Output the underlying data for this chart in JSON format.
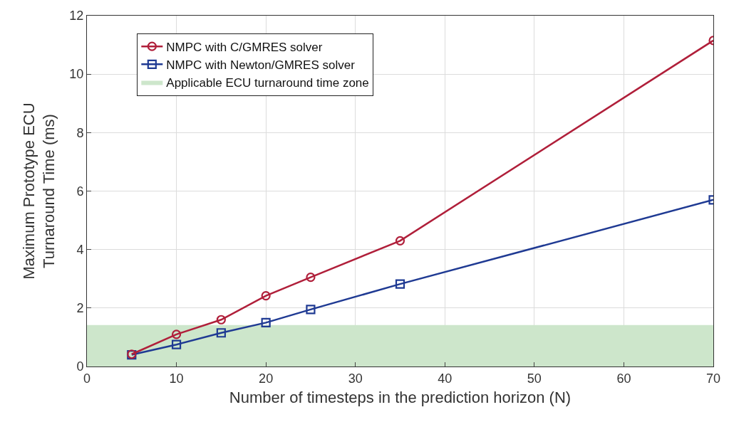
{
  "chart_data": {
    "type": "line",
    "xlabel": "Number of timesteps in the prediction horizon (N)",
    "ylabel": "Maximum Prototype ECU\nTurnaround Time (ms)",
    "x": [
      5,
      10,
      15,
      20,
      25,
      35,
      70
    ],
    "series": [
      {
        "name": "NMPC with Newton/GMRES solver",
        "color": "#1f3a93",
        "marker": "square",
        "values": [
          0.4,
          0.75,
          1.15,
          1.5,
          1.95,
          2.82,
          5.7
        ]
      },
      {
        "name": "NMPC with C/GMRES solver",
        "color": "#b01f3a",
        "marker": "circle",
        "values": [
          0.42,
          1.1,
          1.6,
          2.42,
          3.05,
          4.3,
          11.15
        ]
      }
    ],
    "bands": [
      {
        "axis": "y",
        "from": 0,
        "to": 1.42,
        "label": "Applicable ECU turnaround time zone",
        "color": "#cde6cb"
      }
    ],
    "xlim": [
      0,
      70
    ],
    "xticks": [
      0,
      10,
      20,
      30,
      40,
      50,
      60,
      70
    ],
    "ylim": [
      0,
      12
    ],
    "yticks": [
      0,
      2,
      4,
      6,
      8,
      10,
      12
    ],
    "grid": true,
    "legend": "top left",
    "line_style": "solid"
  }
}
